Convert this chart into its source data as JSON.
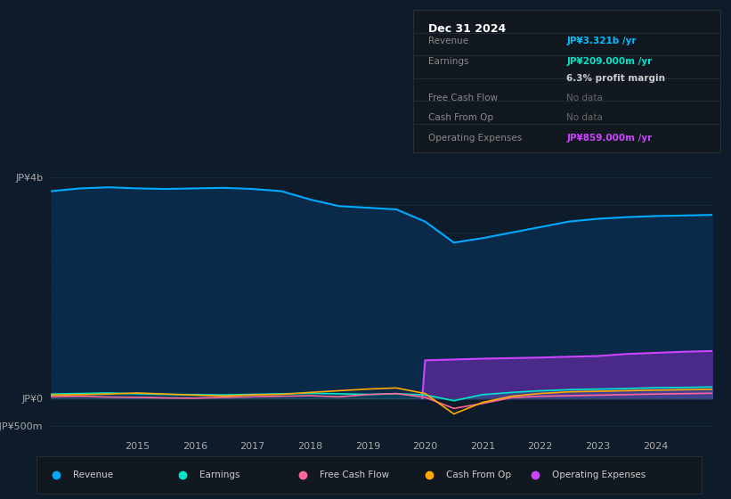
{
  "bg_color": "#0d1b2a",
  "plot_bg_color": "#0d1b2a",
  "grid_color": "#1a2e44",
  "title_box_bg": "#111820",
  "years": [
    2013.5,
    2014,
    2014.5,
    2015,
    2015.5,
    2016,
    2016.5,
    2017,
    2017.5,
    2018,
    2018.5,
    2019,
    2019.5,
    2020,
    2020.5,
    2021,
    2021.5,
    2022,
    2022.5,
    2023,
    2023.5,
    2024,
    2024.5,
    2025
  ],
  "revenue": [
    3750,
    3800,
    3820,
    3800,
    3790,
    3800,
    3810,
    3790,
    3750,
    3600,
    3480,
    3450,
    3420,
    3200,
    2820,
    2900,
    3000,
    3100,
    3200,
    3250,
    3280,
    3300,
    3310,
    3321
  ],
  "earnings": [
    80,
    90,
    100,
    85,
    75,
    70,
    65,
    75,
    85,
    95,
    85,
    75,
    85,
    65,
    -40,
    70,
    110,
    140,
    160,
    170,
    180,
    195,
    200,
    209
  ],
  "free_cash_flow": [
    30,
    40,
    25,
    20,
    10,
    5,
    20,
    30,
    40,
    50,
    30,
    70,
    90,
    20,
    -180,
    -90,
    15,
    40,
    50,
    60,
    70,
    80,
    88,
    95
  ],
  "cash_from_op": [
    60,
    70,
    80,
    100,
    80,
    60,
    45,
    65,
    75,
    110,
    140,
    170,
    190,
    90,
    -280,
    -70,
    40,
    90,
    120,
    130,
    140,
    150,
    158,
    165
  ],
  "op_expenses_x": [
    2019.95,
    2020.0,
    2020.5,
    2021,
    2021.5,
    2022,
    2022.5,
    2023,
    2023.5,
    2024,
    2024.5,
    2025
  ],
  "op_expenses": [
    0,
    690,
    705,
    720,
    730,
    740,
    755,
    768,
    805,
    825,
    845,
    859
  ],
  "revenue_color": "#00aaff",
  "revenue_fill_color": "#0a2a4a",
  "earnings_color": "#00e5cc",
  "fcf_color": "#ff6699",
  "cashop_color": "#ffaa00",
  "opex_color": "#cc44ff",
  "opex_fill_color": "#4a2a88",
  "legend_entries": [
    {
      "label": "Revenue",
      "color": "#00aaff"
    },
    {
      "label": "Earnings",
      "color": "#00e5cc"
    },
    {
      "label": "Free Cash Flow",
      "color": "#ff6699"
    },
    {
      "label": "Cash From Op",
      "color": "#ffaa00"
    },
    {
      "label": "Operating Expenses",
      "color": "#cc44ff"
    }
  ],
  "info_date": "Dec 31 2024",
  "info_rows": [
    {
      "label": "Revenue",
      "value": "JP¥3.321b /yr",
      "value_color": "#00bfff",
      "dim": false
    },
    {
      "label": "Earnings",
      "value": "JP¥209.000m /yr",
      "value_color": "#00e5cc",
      "dim": false
    },
    {
      "label": "",
      "value": "6.3% profit margin",
      "value_color": "#cccccc",
      "dim": false
    },
    {
      "label": "Free Cash Flow",
      "value": "No data",
      "value_color": "#666666",
      "dim": true
    },
    {
      "label": "Cash From Op",
      "value": "No data",
      "value_color": "#666666",
      "dim": true
    },
    {
      "label": "Operating Expenses",
      "value": "JP¥859.000m /yr",
      "value_color": "#cc44ff",
      "dim": false
    }
  ]
}
